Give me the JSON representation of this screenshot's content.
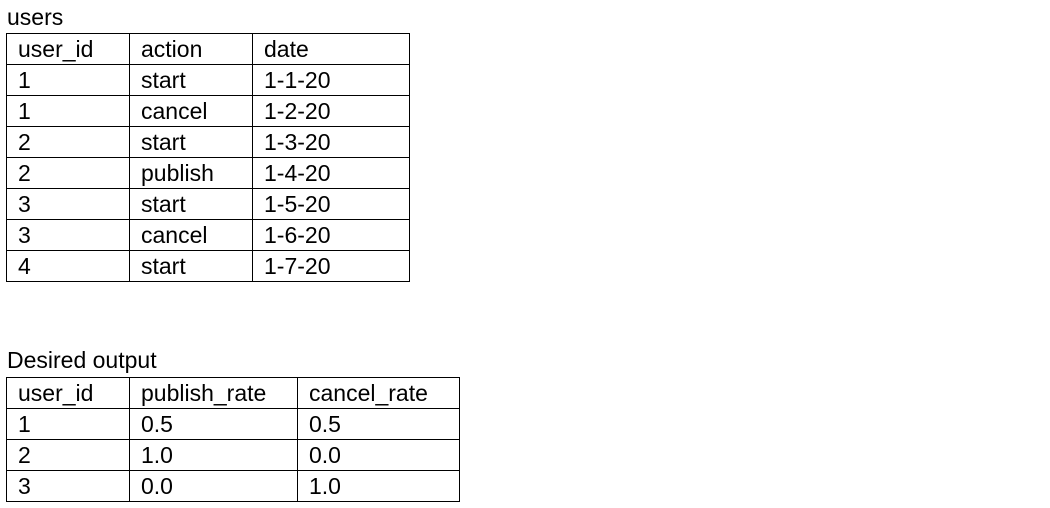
{
  "users_table": {
    "caption": "users",
    "headers": [
      "user_id",
      "action",
      "date"
    ],
    "rows": [
      [
        "1",
        "start",
        "1-1-20"
      ],
      [
        "1",
        "cancel",
        "1-2-20"
      ],
      [
        "2",
        "start",
        "1-3-20"
      ],
      [
        "2",
        "publish",
        "1-4-20"
      ],
      [
        "3",
        "start",
        "1-5-20"
      ],
      [
        "3",
        "cancel",
        "1-6-20"
      ],
      [
        "4",
        "start",
        "1-7-20"
      ]
    ]
  },
  "output_table": {
    "caption": "Desired output",
    "headers": [
      "user_id",
      "publish_rate",
      "cancel_rate"
    ],
    "rows": [
      [
        "1",
        "0.5",
        "0.5"
      ],
      [
        "2",
        "1.0",
        "0.0"
      ],
      [
        "3",
        "0.0",
        "1.0"
      ]
    ]
  }
}
